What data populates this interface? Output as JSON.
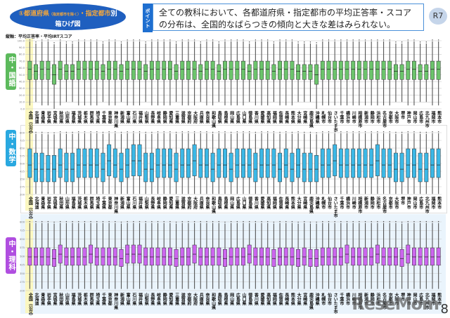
{
  "header": {
    "title_number": "①",
    "title_main": "都道府県",
    "title_note": "（指定都市を除く）",
    "title_sep": "・指定都市",
    "title_suffix": "別",
    "title_line2": "箱ひげ図",
    "point_tag": "ポイント",
    "point_text": "全ての教科において、各都道府県・指定都市の平均正答率・スコアの分布は、全国的なばらつきの傾向と大きな差はみられない。",
    "badge": "R7"
  },
  "axis_note": "縦軸：平均正答率・平均IRTスコア",
  "page_number": "8",
  "watermark": "ReseMom",
  "chart_data": [
    {
      "type": "box",
      "subject": "中・国語",
      "ylim": [
        0,
        100
      ],
      "ticks": [
        "0.0",
        "10.0",
        "20.0",
        "30.0",
        "40.0",
        "50.0",
        "60.0",
        "70.0",
        "80.0",
        "90.0",
        "100.0"
      ],
      "color": "#6cc46c",
      "levels": "HLHHXHLLHHHHLHHLHHHLHHHHLHHHLHHLHHHHLHHHLHHHLLLXHHHHHHHHHHHHLLHHLLHH",
      "templates": {
        "H": {
          "min": 5,
          "q1": 43,
          "median": 58,
          "q3": 70,
          "max": 99
        },
        "L": {
          "min": 10,
          "q1": 43,
          "median": 55,
          "q3": 65,
          "max": 96
        },
        "X": {
          "min": 0,
          "q1": 36,
          "median": 50,
          "q3": 65,
          "max": 95
        }
      }
    },
    {
      "type": "box",
      "subject": "中・数学",
      "ylim": [
        200,
        800
      ],
      "ticks": [
        "200",
        "275",
        "350",
        "425",
        "500",
        "575",
        "650",
        "725",
        "800"
      ],
      "color": "#3cb8e6",
      "levels": "MLLXXMLLMMMMLHMLMHHLLMMMLMMHMMLMMLMMMLMMMLMLMLLXMMHMMMMMMHMMLLMMLLMM",
      "templates": {
        "H": {
          "min": 205,
          "q1": 380,
          "median": 527,
          "q3": 684,
          "max": 795
        },
        "M": {
          "min": 205,
          "q1": 364,
          "median": 486,
          "q3": 643,
          "max": 795
        },
        "L": {
          "min": 205,
          "q1": 323,
          "median": 445,
          "q3": 602,
          "max": 790
        },
        "X": {
          "min": 205,
          "q1": 323,
          "median": 445,
          "q3": 580,
          "max": 785
        }
      }
    },
    {
      "type": "box",
      "subject": "中・理科",
      "ylim": [
        200,
        800
      ],
      "ticks": [
        "200",
        "275",
        "350",
        "425",
        "500",
        "575",
        "650",
        "725",
        "800"
      ],
      "color": "#cc66ee",
      "levels": "MMMMLHMMMMHMMMMLHHHMMMMMLMMHMMMMLMMMHMMMLMMMLMLXMMMMHMMMMHMMMLHMMMMM",
      "templates": {
        "H": {
          "min": 215,
          "q1": 439,
          "median": 518,
          "q3": 598,
          "max": 790
        },
        "M": {
          "min": 215,
          "q1": 421,
          "median": 494,
          "q3": 573,
          "max": 790
        },
        "L": {
          "min": 215,
          "q1": 410,
          "median": 480,
          "q3": 560,
          "max": 785
        }
      }
    }
  ],
  "categories": [
    "全国（公立）",
    "北海道",
    "青森県",
    "岩手県",
    "宮城県",
    "秋田県",
    "山形県",
    "福島県",
    "茨城県",
    "栃木県",
    "群馬県",
    "埼玉県",
    "千葉県",
    "東京都",
    "神奈川県",
    "新潟県",
    "富山県",
    "石川県",
    "福井県",
    "山梨県",
    "長野県",
    "岐阜県",
    "静岡県",
    "愛知県",
    "三重県",
    "滋賀県",
    "京都府",
    "大阪府",
    "兵庫県",
    "奈良県",
    "和歌山県",
    "鳥取県",
    "島根県",
    "岡山県",
    "広島県",
    "山口県",
    "徳島県",
    "香川県",
    "愛媛県",
    "高知県",
    "福岡県",
    "佐賀県",
    "長崎県",
    "熊本県",
    "大分県",
    "宮崎県",
    "鹿児島県",
    "沖縄県",
    "札幌市",
    "仙台市",
    "さいたま市",
    "千葉市",
    "横浜市",
    "川崎市",
    "相模原市",
    "新潟市",
    "静岡市",
    "浜松市",
    "名古屋市",
    "京都市",
    "大阪市",
    "堺市",
    "神戸市",
    "岡山市",
    "広島市",
    "北九州市",
    "福岡市",
    "熊本市"
  ]
}
